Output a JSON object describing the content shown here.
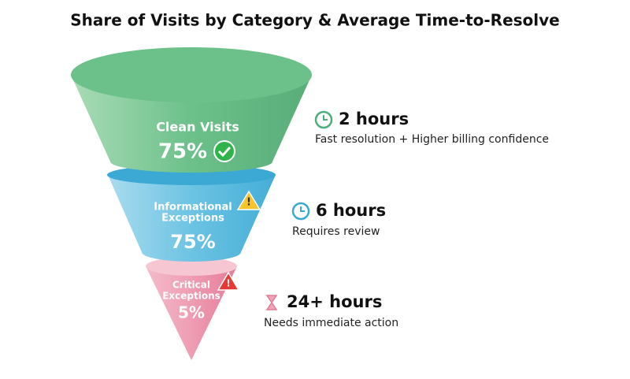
{
  "title": "Share of Visits by Category & Average Time-to-Resolve",
  "stages": [
    {
      "label": [
        "Clean Visits"
      ],
      "percent": "75%",
      "time": "2 hours",
      "note": "Fast resolution + Higher billing confidence"
    },
    {
      "label": [
        "Informational",
        "Exceptions"
      ],
      "percent": "75%",
      "time": "6 hours",
      "note": "Requires review"
    },
    {
      "label": [
        "Critical",
        "Exceptions"
      ],
      "percent": "5%",
      "time": "24+ hours",
      "note": "Needs immediate action"
    }
  ]
}
